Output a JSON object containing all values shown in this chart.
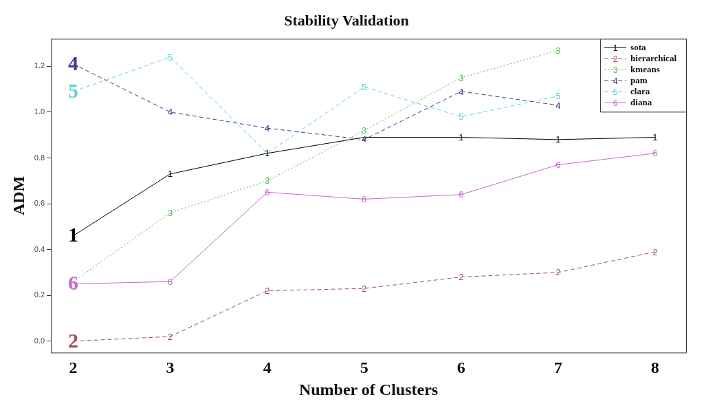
{
  "chart_data": {
    "type": "line",
    "title": "Stability Validation",
    "xlabel": "Number of Clusters",
    "ylabel": "ADM",
    "x": [
      2,
      3,
      4,
      5,
      6,
      7,
      8
    ],
    "xlim": [
      1.77,
      8.32
    ],
    "xticks": [
      2,
      3,
      4,
      5,
      6,
      7,
      8
    ],
    "ylim": [
      -0.05,
      1.32
    ],
    "yticks": [
      {
        "value": 0,
        "label": "0.0"
      },
      {
        "value": 0.2,
        "label": "0.2"
      },
      {
        "value": 0.4,
        "label": "0.4"
      },
      {
        "value": 0.6,
        "label": "0.6"
      },
      {
        "value": 0.8,
        "label": "0.8"
      },
      {
        "value": 1,
        "label": "1.0"
      },
      {
        "value": 1.2,
        "label": "1.2"
      }
    ],
    "grid": false,
    "legend": "top right",
    "series": [
      {
        "name": "sota",
        "color": "#000000",
        "line_style": "solid",
        "values": [
          0.46,
          0.73,
          0.82,
          0.89,
          0.89,
          0.88,
          0.89
        ]
      },
      {
        "name": "hierarchical",
        "color": "#a0524d",
        "line_style": "dashed",
        "values": [
          0.0,
          0.02,
          0.22,
          0.23,
          0.28,
          0.3,
          0.39
        ]
      },
      {
        "name": "kmeans",
        "color": "#55b64e",
        "line_style": "dotted",
        "values": [
          0.26,
          0.56,
          0.7,
          0.92,
          1.15,
          1.27,
          null
        ]
      },
      {
        "name": "pam",
        "color": "#3b3b8f",
        "line_style": "dashed",
        "values": [
          1.21,
          1.0,
          0.93,
          0.88,
          1.09,
          1.03,
          null
        ]
      },
      {
        "name": "clara",
        "color": "#5fd3d6",
        "line_style": "dashed",
        "values": [
          1.09,
          1.24,
          0.82,
          1.11,
          0.98,
          1.07,
          null
        ]
      },
      {
        "name": "diana",
        "color": "#c667c9",
        "line_style": "solid",
        "values": [
          0.25,
          0.26,
          0.65,
          0.62,
          0.64,
          0.77,
          0.82
        ]
      }
    ],
    "annotations": [
      {
        "text": "1",
        "x": 2,
        "y": 0.46
      },
      {
        "text": "1",
        "x": 3,
        "y": 0.73
      },
      {
        "text": "1",
        "x": 4,
        "y": 0.82
      },
      {
        "text": "1",
        "x": 6,
        "y": 0.89
      },
      {
        "text": "1",
        "x": 7,
        "y": 0.88
      },
      {
        "text": "1",
        "x": 8,
        "y": 0.89
      },
      {
        "text": "2",
        "x": 2,
        "y": 0.0
      },
      {
        "text": "2",
        "x": 3,
        "y": 0.02
      },
      {
        "text": "2",
        "x": 4,
        "y": 0.22
      },
      {
        "text": "2",
        "x": 5,
        "y": 0.23
      },
      {
        "text": "2",
        "x": 6,
        "y": 0.28
      },
      {
        "text": "2",
        "x": 7,
        "y": 0.3
      },
      {
        "text": "2",
        "x": 8,
        "y": 0.39
      },
      {
        "text": "3",
        "x": 3,
        "y": 0.56
      },
      {
        "text": "3",
        "x": 4,
        "y": 0.7
      },
      {
        "text": "3",
        "x": 5,
        "y": 0.92
      },
      {
        "text": "3",
        "x": 6,
        "y": 1.15
      },
      {
        "text": "3",
        "x": 7,
        "y": 1.27
      },
      {
        "text": "4",
        "x": 2,
        "y": 1.21
      },
      {
        "text": "4",
        "x": 3,
        "y": 1.0
      },
      {
        "text": "4",
        "x": 4,
        "y": 0.93
      },
      {
        "text": "4",
        "x": 5,
        "y": 0.88
      },
      {
        "text": "4",
        "x": 6,
        "y": 1.09
      },
      {
        "text": "4",
        "x": 7,
        "y": 1.03
      },
      {
        "text": "5",
        "x": 2,
        "y": 1.09
      },
      {
        "text": "5",
        "x": 3,
        "y": 1.24
      },
      {
        "text": "5",
        "x": 5,
        "y": 1.11
      },
      {
        "text": "5",
        "x": 6,
        "y": 0.98
      },
      {
        "text": "5",
        "x": 7,
        "y": 1.07
      },
      {
        "text": "6",
        "x": 2,
        "y": 0.25
      },
      {
        "text": "6",
        "x": 3,
        "y": 0.26
      },
      {
        "text": "6",
        "x": 4,
        "y": 0.65
      },
      {
        "text": "6",
        "x": 5,
        "y": 0.62
      },
      {
        "text": "6",
        "x": 6,
        "y": 0.64
      },
      {
        "text": "6",
        "x": 7,
        "y": 0.77
      },
      {
        "text": "6",
        "x": 8,
        "y": 0.82
      }
    ]
  }
}
